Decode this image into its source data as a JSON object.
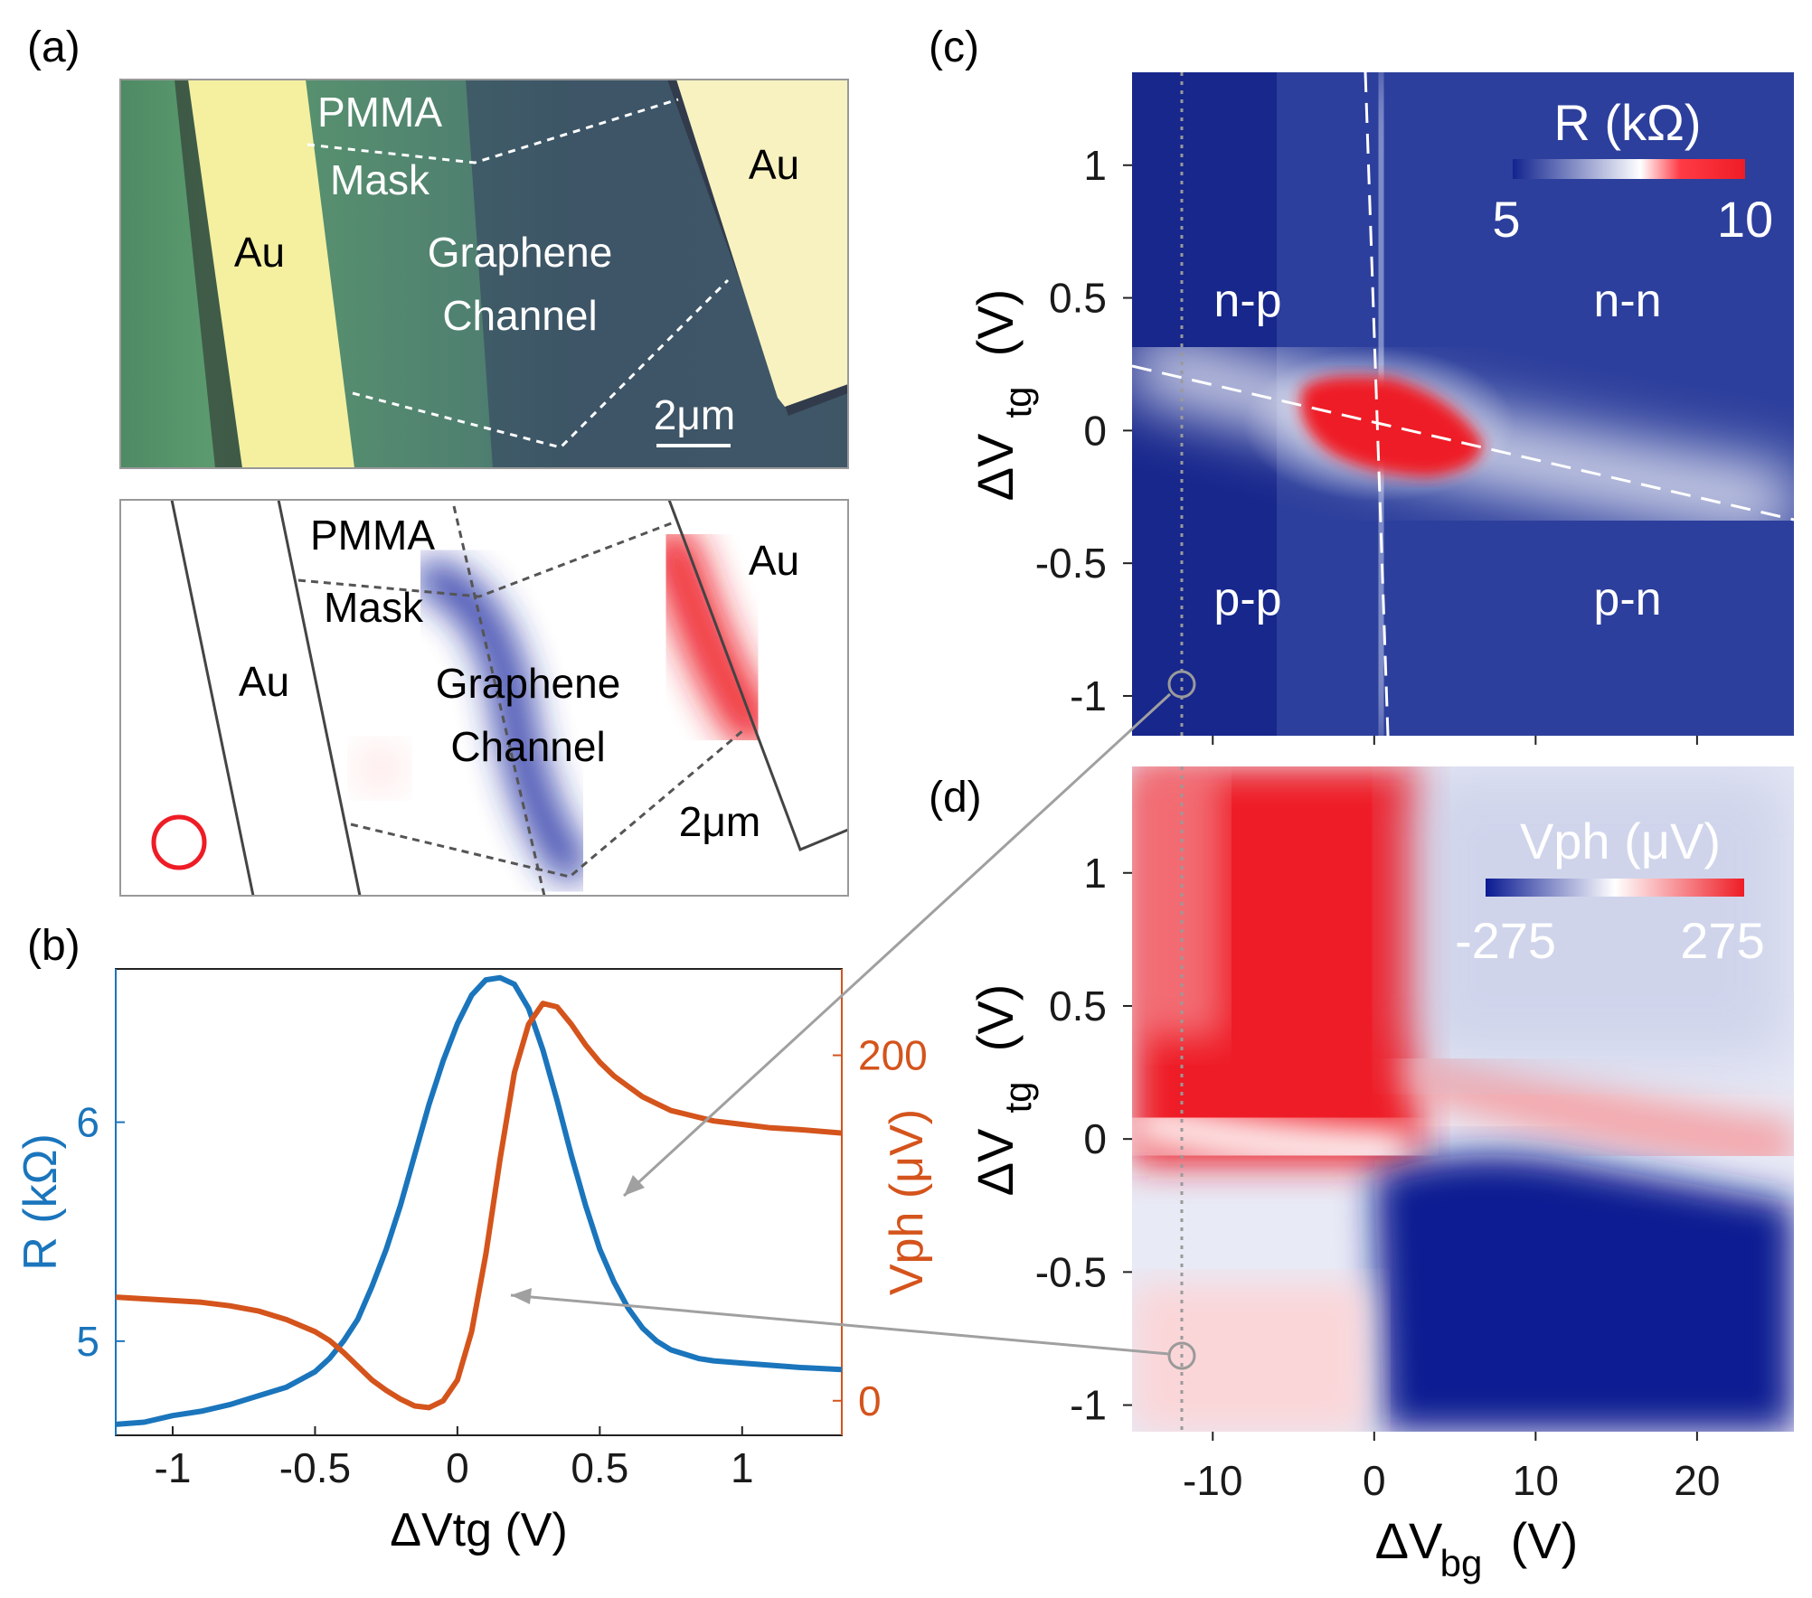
{
  "panel_tags": {
    "a": "(a)",
    "b": "(b)",
    "c": "(c)",
    "d": "(d)"
  },
  "panel_a": {
    "top": {
      "pmma": "PMMA",
      "mask": "Mask",
      "au_left": "Au",
      "au_right": "Au",
      "graphene": "Graphene",
      "channel": "Channel",
      "scale": "2μm"
    },
    "bottom": {
      "pmma": "PMMA",
      "mask": "Mask",
      "au_left": "Au",
      "au_right": "Au",
      "graphene": "Graphene",
      "channel": "Channel",
      "scale": "2μm"
    }
  },
  "panel_c": {
    "regions": {
      "np": "n-p",
      "nn": "n-n",
      "pp": "p-p",
      "pn": "p-n"
    },
    "colorbar": {
      "title": "R (kΩ)",
      "min_label": "5",
      "max_label": "10",
      "min": 5,
      "max": 10
    },
    "ylabel": "ΔV",
    "ylabel_sub": "tg",
    "ylabel_unit": "(V)",
    "yticks": [
      1,
      0.5,
      0,
      -0.5,
      -1
    ],
    "ytick_labels": [
      "1",
      "0.5",
      "0",
      "-0.5",
      "-1"
    ],
    "ylim": [
      -1.15,
      1.35
    ],
    "xlim": [
      -15,
      26
    ],
    "xticks": [
      -10,
      0,
      10,
      20
    ],
    "colors": {
      "low": "#12248f",
      "mid": "#ffffff",
      "high": "#ee1c25"
    }
  },
  "panel_d": {
    "colorbar": {
      "title": "Vph (μV)",
      "min_label": "-275",
      "max_label": "275",
      "min": -275,
      "max": 275
    },
    "ylabel": "ΔV",
    "ylabel_sub": "tg",
    "ylabel_unit": "(V)",
    "yticks": [
      1,
      0.5,
      0,
      -0.5,
      -1
    ],
    "ytick_labels": [
      "1",
      "0.5",
      "0",
      "-0.5",
      "-1"
    ],
    "ylim": [
      -1.1,
      1.4
    ],
    "xlim": [
      -15,
      26
    ],
    "xticks": [
      -10,
      0,
      10,
      20
    ],
    "xtick_labels": [
      "-10",
      "0",
      "10",
      "20"
    ],
    "xlabel": "ΔV",
    "xlabel_sub": "bg",
    "xlabel_unit": "(V)"
  },
  "chart_data": [
    {
      "type": "line",
      "title": "",
      "xlabel": "ΔVtg (V)",
      "xlim": [
        -1.2,
        1.35
      ],
      "xticks": [
        -1,
        -0.5,
        0,
        0.5,
        1
      ],
      "xtick_labels": [
        "-1",
        "-0.5",
        "0",
        "0.5",
        "1"
      ],
      "x": [
        -1.2,
        -1.1,
        -1.0,
        -0.9,
        -0.8,
        -0.7,
        -0.6,
        -0.5,
        -0.45,
        -0.4,
        -0.35,
        -0.3,
        -0.25,
        -0.2,
        -0.15,
        -0.1,
        -0.05,
        0.0,
        0.05,
        0.1,
        0.15,
        0.2,
        0.25,
        0.3,
        0.35,
        0.4,
        0.45,
        0.5,
        0.55,
        0.6,
        0.65,
        0.7,
        0.75,
        0.8,
        0.85,
        0.9,
        1.0,
        1.1,
        1.2,
        1.35
      ],
      "series": [
        {
          "name": "R",
          "axis": "left",
          "ylabel": "R (kΩ)",
          "ylim": [
            4.57,
            6.7
          ],
          "yticks": [
            5,
            6
          ],
          "ytick_labels": [
            "5",
            "6"
          ],
          "color": "#1a75bc",
          "values": [
            4.62,
            4.63,
            4.66,
            4.68,
            4.71,
            4.75,
            4.79,
            4.86,
            4.92,
            5.0,
            5.1,
            5.25,
            5.42,
            5.62,
            5.85,
            6.08,
            6.28,
            6.45,
            6.58,
            6.65,
            6.66,
            6.63,
            6.52,
            6.33,
            6.1,
            5.85,
            5.62,
            5.42,
            5.27,
            5.15,
            5.06,
            5.0,
            4.96,
            4.94,
            4.92,
            4.91,
            4.9,
            4.89,
            4.88,
            4.87
          ]
        },
        {
          "name": "Vph",
          "axis": "right",
          "ylabel": "Vph (μV)",
          "ylim": [
            -20,
            250
          ],
          "yticks": [
            0,
            200
          ],
          "ytick_labels": [
            "0",
            "200"
          ],
          "color": "#d4541c",
          "values": [
            60,
            59,
            58,
            57,
            55,
            52,
            47,
            40,
            35,
            28,
            20,
            12,
            6,
            1,
            -3,
            -4,
            0,
            12,
            40,
            85,
            140,
            190,
            218,
            230,
            228,
            218,
            206,
            196,
            188,
            182,
            176,
            172,
            168,
            166,
            164,
            162,
            160,
            158,
            157,
            155
          ]
        }
      ]
    }
  ]
}
